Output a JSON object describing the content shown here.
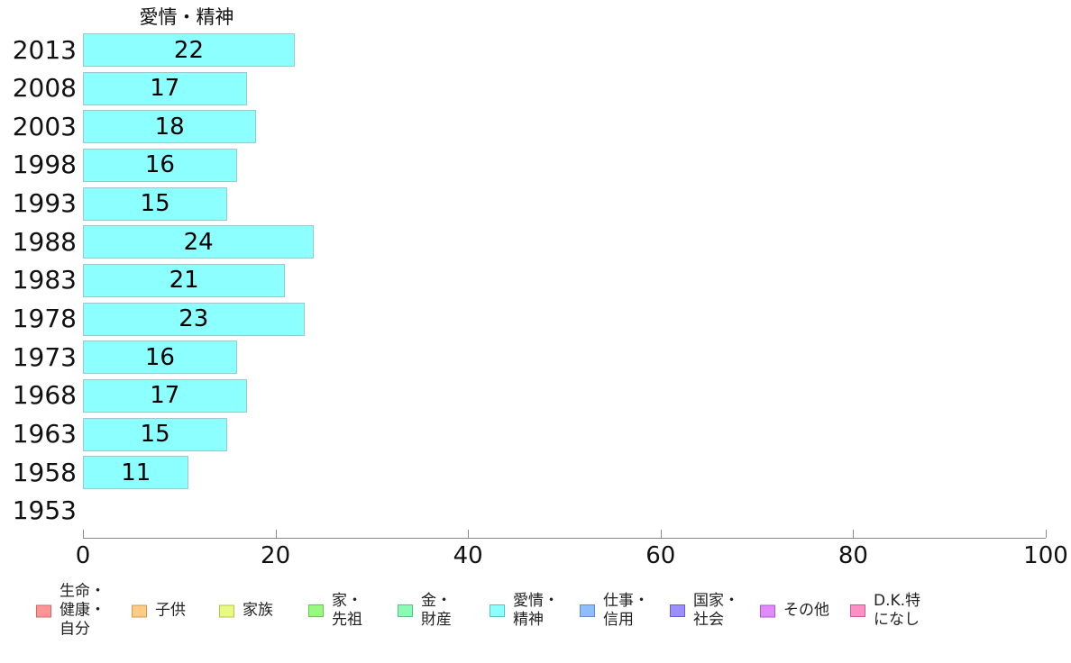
{
  "chart_data": {
    "type": "bar",
    "orientation": "horizontal",
    "title": "愛情・精神",
    "categories": [
      "2013",
      "2008",
      "2003",
      "1998",
      "1993",
      "1988",
      "1983",
      "1978",
      "1973",
      "1968",
      "1963",
      "1958",
      "1953"
    ],
    "values": [
      22,
      17,
      18,
      16,
      15,
      24,
      21,
      23,
      16,
      17,
      15,
      11,
      null
    ],
    "value_labels": [
      "22",
      "17",
      "18",
      "16",
      "15",
      "24",
      "21",
      "23",
      "16",
      "17",
      "15",
      "11",
      ""
    ],
    "xlabel": "",
    "ylabel": "",
    "xlim": [
      0,
      100
    ],
    "xticks": [
      0,
      20,
      40,
      60,
      80,
      100
    ],
    "grid": false,
    "bar_fill_color": "#8CFFFF",
    "bar_border_color": "#9CC9C9",
    "value_labels_inside_bars": true,
    "legend_position": "bottom"
  },
  "legend": {
    "items": [
      {
        "label": "生命・健康・自分",
        "lines": [
          "生命・",
          "健康・",
          "自分"
        ],
        "fill": "#FF9494",
        "border": "#CC6A6A"
      },
      {
        "label": "子供",
        "lines": [
          "子供"
        ],
        "fill": "#FFCC85",
        "border": "#CC9A52"
      },
      {
        "label": "家族",
        "lines": [
          "家族"
        ],
        "fill": "#E8FA82",
        "border": "#B8C44F"
      },
      {
        "label": "家・先祖",
        "lines": [
          "家・",
          "先祖"
        ],
        "fill": "#97FA80",
        "border": "#66C44F"
      },
      {
        "label": "金・財産",
        "lines": [
          "金・",
          "財産"
        ],
        "fill": "#8BFAB5",
        "border": "#57C484"
      },
      {
        "label": "愛情・精神",
        "lines": [
          "愛情・",
          "精神"
        ],
        "fill": "#8CFFFF",
        "border": "#57C4C4"
      },
      {
        "label": "仕事・信用",
        "lines": [
          "仕事・",
          "信用"
        ],
        "fill": "#8FBEFF",
        "border": "#5C8FCC"
      },
      {
        "label": "国家・社会",
        "lines": [
          "国家・",
          "社会"
        ],
        "fill": "#9C8FFF",
        "border": "#6F5CCC"
      },
      {
        "label": "その他",
        "lines": [
          "その他"
        ],
        "fill": "#E08BFF",
        "border": "#AE57CC"
      },
      {
        "label": "D.K.特になし",
        "lines": [
          "D.K.特",
          "になし"
        ],
        "fill": "#FF8FC5",
        "border": "#CC5C93"
      }
    ]
  }
}
